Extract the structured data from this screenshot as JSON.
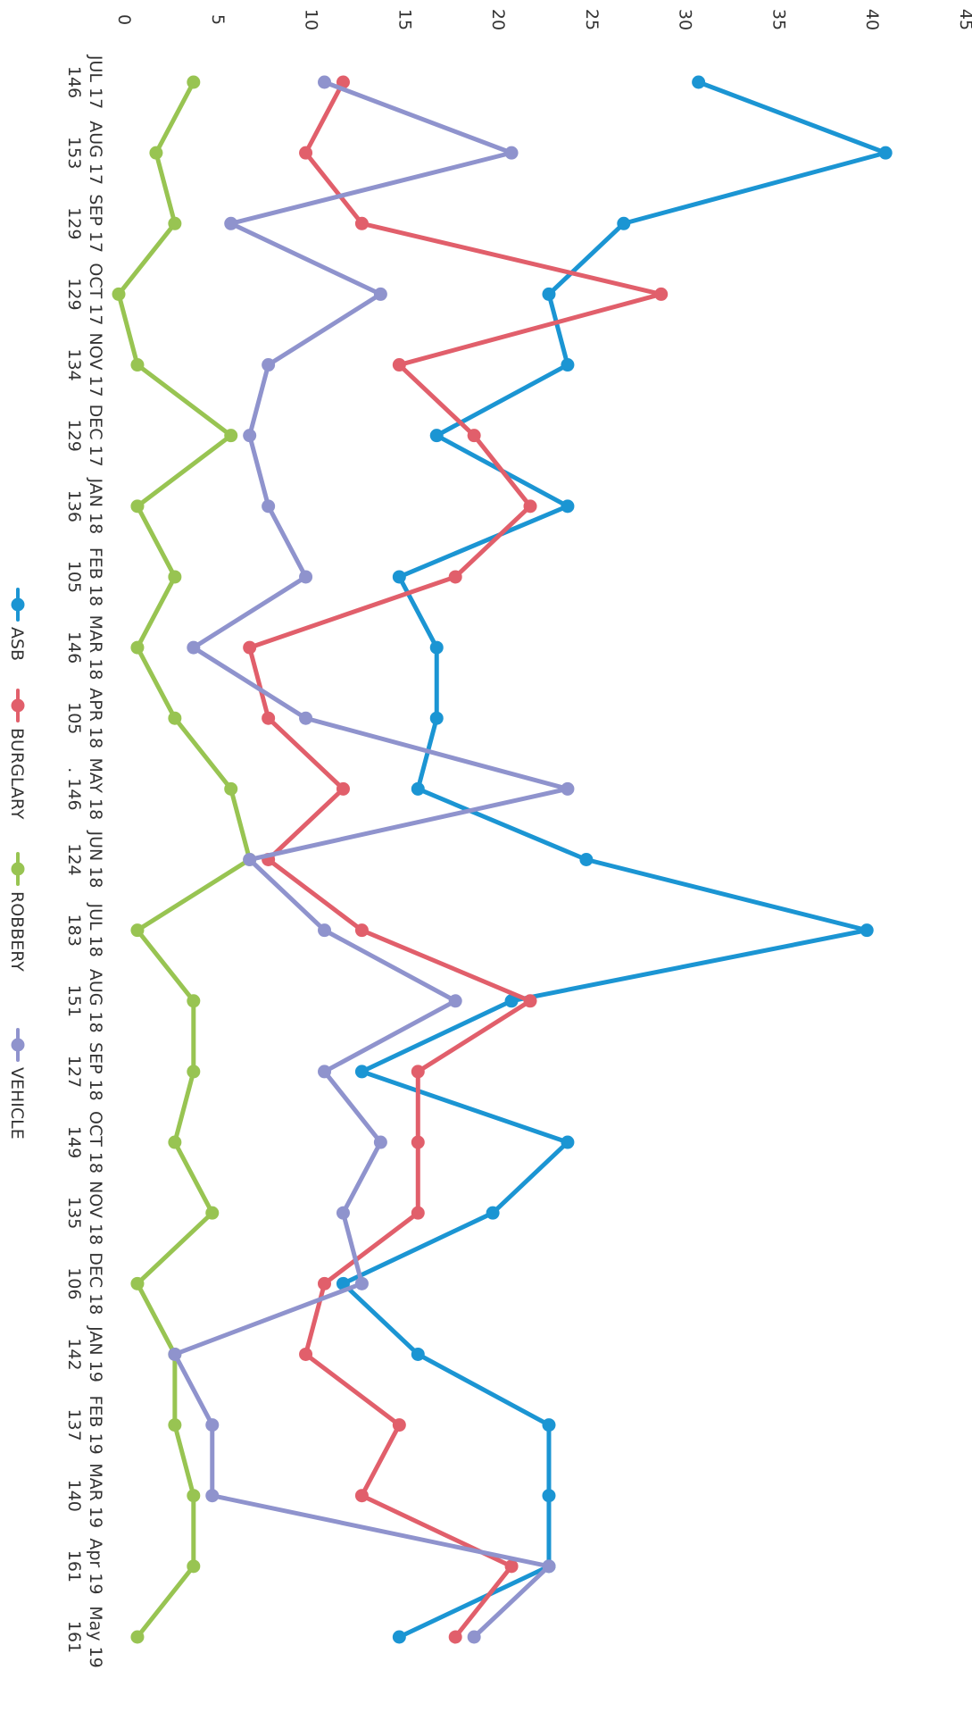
{
  "chart_data": {
    "type": "line",
    "orientation": "rotated-90-clockwise",
    "categories": [
      "JUL 17",
      "AUG 17",
      "SEP 17",
      "OCT 17",
      "NOV 17",
      "DEC 17",
      "JAN 18",
      "FEB 18",
      "MAR 18",
      "APR 18",
      "MAY 18",
      "JUN 18",
      "JUL 18",
      "AUG 18",
      "SEP 18",
      "OCT 18",
      "NOV 18",
      "DEC 18",
      "JAN 19",
      "FEB 19",
      "MAR 19",
      "Apr 19",
      "May 19"
    ],
    "totals": [
      "146",
      "153",
      "129",
      "129",
      "134",
      "129",
      "136",
      "105",
      "146",
      "105",
      ". 146",
      "124",
      "183",
      "151",
      "127",
      "149",
      "135",
      "106",
      "142",
      "137",
      "140",
      "161",
      "161"
    ],
    "ylim": [
      0,
      45
    ],
    "yticks": [
      "0",
      "5",
      "10",
      "15",
      "20",
      "25",
      "30",
      "35",
      "40",
      "45"
    ],
    "series": [
      {
        "name": "ASB",
        "color": "#1b95d3",
        "values": [
          31,
          41,
          27,
          23,
          24,
          17,
          24,
          15,
          17,
          17,
          16,
          25,
          40,
          21,
          13,
          24,
          20,
          12,
          16,
          23,
          23,
          23,
          15
        ]
      },
      {
        "name": "BURGLARY",
        "color": "#e15f6b",
        "values": [
          12,
          10,
          13,
          29,
          15,
          19,
          22,
          18,
          7,
          8,
          12,
          8,
          13,
          22,
          16,
          16,
          16,
          11,
          10,
          15,
          13,
          21,
          18
        ]
      },
      {
        "name": "ROBBERY",
        "color": "#98c452",
        "values": [
          4,
          2,
          3,
          0,
          1,
          6,
          1,
          3,
          1,
          3,
          6,
          7,
          1,
          4,
          4,
          3,
          5,
          1,
          3,
          3,
          4,
          4,
          1
        ]
      },
      {
        "name": "VEHICLE",
        "color": "#8f93cd",
        "values": [
          11,
          21,
          6,
          14,
          8,
          7,
          8,
          10,
          4,
          10,
          24,
          7,
          11,
          18,
          11,
          14,
          12,
          13,
          3,
          5,
          5,
          23,
          19
        ]
      }
    ],
    "legend": "bottom",
    "grid": false
  }
}
